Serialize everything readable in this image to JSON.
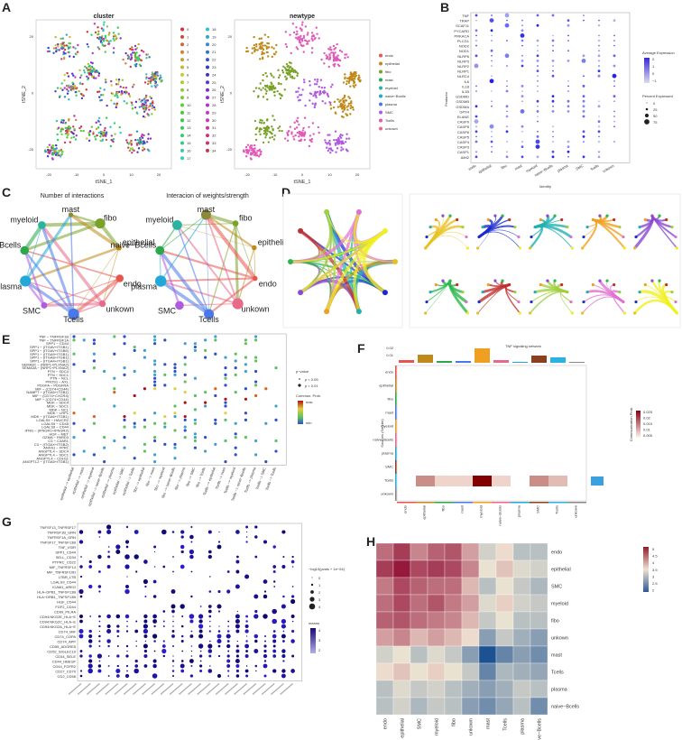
{
  "panels": {
    "a": {
      "label": "A",
      "titles": [
        "cluster",
        "newtype"
      ],
      "xlabel": "tSNE_1",
      "ylabel": "tSNE_2",
      "xticks": [
        "-20",
        "-10",
        "0",
        "10",
        "20"
      ],
      "yticks": [
        "20",
        "0",
        "-20"
      ],
      "cluster_ids": [
        "0",
        "1",
        "2",
        "3",
        "4",
        "5",
        "6",
        "7",
        "8",
        "9",
        "10",
        "11",
        "12",
        "13",
        "14",
        "15",
        "16",
        "17",
        "18",
        "19",
        "20",
        "21",
        "22",
        "23",
        "24",
        "25",
        "26",
        "27",
        "28",
        "29",
        "30",
        "31",
        "32",
        "33",
        "34"
      ],
      "celltypes": [
        "endo",
        "epithelial",
        "fibo",
        "mast",
        "myeloid",
        "naive−Bcells",
        "plasma",
        "SMC",
        "Tcells",
        "unkown"
      ],
      "celltype_colors": [
        "#e8554e",
        "#c08a1a",
        "#7aa22a",
        "#2aa84a",
        "#2ab3a0",
        "#22a8d8",
        "#4a78e8",
        "#b05ae0",
        "#e05ab8",
        "#e86a8a"
      ]
    },
    "b": {
      "label": "B",
      "features": [
        "TNF",
        "TRAP",
        "SCAF11",
        "PYCARD",
        "PRKACA",
        "PLCG1",
        "NOD2",
        "NOD1",
        "NLRP6",
        "NLRP3",
        "NLRP2",
        "NLRP1",
        "NLRC4",
        "IL6",
        "IL18",
        "IL1B",
        "GSDMD",
        "GSDMB",
        "GSDMA",
        "GPX4",
        "ELANE",
        "CASP9",
        "CASP8",
        "CASP6",
        "CASP5",
        "CASP4",
        "CASP3",
        "CASP1",
        "AIM2"
      ],
      "identities": [
        "endo",
        "epithelial",
        "fibo",
        "mast",
        "myeloid",
        "naive−Bcells",
        "plasma",
        "SMC",
        "Tcells",
        "unkown"
      ],
      "xlabel": "Identity",
      "ylabel": "Features",
      "legend_expr": "Average Expression",
      "expr_ticks": [
        "2",
        "1",
        "0",
        "−1"
      ],
      "legend_pct": "Percent Expressed",
      "pct_ticks": [
        "0",
        "25",
        "50",
        "75"
      ]
    },
    "c": {
      "label": "C",
      "titles": [
        "Number of interactions",
        "Interacion of weights/strength"
      ],
      "nodes": [
        "fibo",
        "epithelial",
        "endo",
        "unkown",
        "Tcells",
        "SMC",
        "plasma",
        "naive−Bcells",
        "myeloid",
        "mast"
      ]
    },
    "d": {
      "label": "D"
    },
    "e": {
      "label": "E",
      "rows": [
        "TNF − TNFRSF1B",
        "TNF − TNFRSF1A",
        "SPP1 − CD44",
        "SPP1 − (ITGAV+ITGB1)",
        "SPP1 − (ITGAV+ITGB5)",
        "SPP1 − (ITGA9+ITGB1)",
        "SPP1 − (ITGA8+ITGB1)",
        "SPP1 − (ITGA4+ITGB1)",
        "SEMA3C − (NRP1+PLXNA2)",
        "SEMA3A − (NRP1+PLXNA2)",
        "PTN − SDC4",
        "PTN − SDC1",
        "PTN − NCL",
        "PROS1 − AXL",
        "PDGFA − PDGFRA",
        "MIF − (CD74+CD44)",
        "NAMPT − (ITGA5+ITGB1)",
        "MIF − (CD74+CXCR4)",
        "MIF − (CD74+CD44)",
        "MDK − SDC4",
        "MDK − SDC1",
        "MDK − NCL",
        "MDK − LRP1",
        "MDK − (ITGA6+ITGB1)",
        "LGALS9 − HAVCR2",
        "LGALS9 − CD45",
        "LGALS9 − CD44",
        "IFNG − (IFNGR1+IFNGR2)",
        "HGF − MET",
        "GZMA − PARD3",
        "C3 − C3AR1",
        "C3 − (ITGAX+ITGB2)",
        "ANXA1 − FPR1",
        "ANGPTL4 − SDC4",
        "ANGPTL4 − SDC1",
        "ANGPTL4 − CDH11",
        "ANGPTL2 − (ITGA5+ITGB1)"
      ],
      "cols": [
        "epithelial −> epithelial",
        "epithelial −> mast",
        "epithelial −> myeloid",
        "epithelial −> naive−Bcells",
        "epithelial −> plasma",
        "epithelial −> SMC",
        "epithelial −> Tcells",
        "fibo −> epithelial",
        "fibo −> mast",
        "fibo −> myeloid",
        "fibo −> naive−Bcells",
        "fibo −> plasma",
        "fibo −> SMC",
        "fibo −> Tcells",
        "Tcells −> epithelial",
        "Tcells −> mast",
        "Tcells −> myeloid",
        "Tcells −> naive−Bcells",
        "Tcells −> plasma",
        "Tcells −> SMC",
        "Tcells −> Tcells"
      ],
      "legend_p": "p−value",
      "p_items": [
        "p < 0.05",
        "p < 0.01"
      ],
      "legend_prob": "Commun. Prob.",
      "prob_ticks": [
        "max",
        "min"
      ]
    },
    "f": {
      "label": "F",
      "title": "TNF signaling network",
      "ylabel": "Sources (Sender)",
      "legend": "Communication Prob.",
      "legend_ticks": [
        "0.025",
        "0.02",
        "0.015",
        "0.01",
        "0.005"
      ],
      "top_ticks": [
        "0.02",
        "0.01"
      ],
      "cells": [
        "endo",
        "epithelial",
        "fibo",
        "mast",
        "myeloid",
        "naive−Bcells",
        "plasma",
        "SMC",
        "Tcells",
        "unkown"
      ]
    },
    "g": {
      "label": "G",
      "rows": [
        "TNFSF13_TNFRSF17",
        "TNFRSF1B_GRN",
        "TNFRSF1A_GRN",
        "TNFSF17_TNFSF13B",
        "TNF_VSIR",
        "SPP1_CD44",
        "SELL_CD34",
        "PTPRC_CD22",
        "MIF_TNFRSF14",
        "MIF_TNFRSF10D",
        "LTBR_LTB",
        "LGALS9_CD44",
        "ICAM1_AREG",
        "HLA−DPB1_TNFSF13B",
        "HLA−DRB1_TNFSF13B",
        "HGF_CD44",
        "FGF2_CD44",
        "CD99_PILRA",
        "CD94:NKG2E_HLA−E",
        "CD94:NKG2C_HLA−E",
        "CD94:NKG2A_HLA−E",
        "CD74_MIF",
        "CD74_COPA",
        "CD74_APP",
        "CD55_ADGRE5",
        "CD52_SIGLEC10",
        "CD44_SELE",
        "CD44_HBEGF",
        "CD44_FGFR2",
        "CD27_CD70",
        "CD2_CD58"
      ],
      "legend_p": "−log10(pvals + 1e−04)",
      "p_ticks": [
        "0",
        "1",
        "2",
        "3",
        "4"
      ],
      "legend_means": "means",
      "means_ticks": [
        "4",
        "3",
        "2"
      ]
    },
    "h": {
      "label": "H",
      "rows": [
        "endo",
        "epithelial",
        "SMC",
        "myeloid",
        "fibo",
        "unkown",
        "mast",
        "Tcells",
        "plasma",
        "naive−Bcells"
      ],
      "cols": [
        "endo",
        "epithelial",
        "SMC",
        "myeloid",
        "fibo",
        "unkown",
        "mast",
        "Tcells",
        "plasma",
        "naive−Bcells"
      ],
      "scale_ticks": [
        "5",
        "4.5",
        "4",
        "3.5",
        "3",
        "2.5",
        "2"
      ]
    }
  }
}
